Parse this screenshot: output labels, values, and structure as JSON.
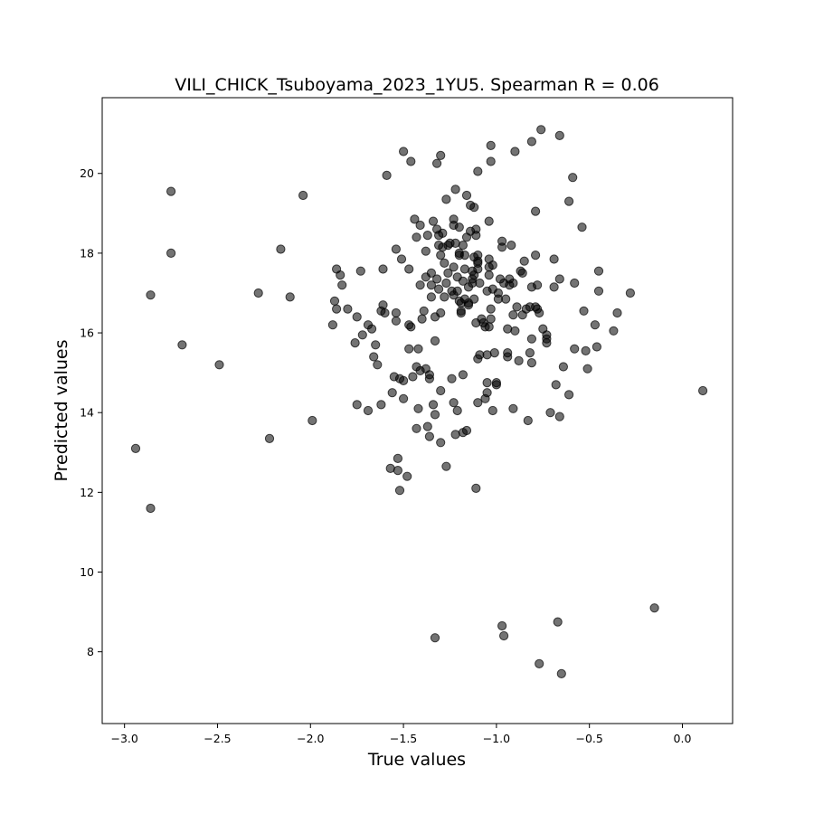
{
  "chart_data": {
    "type": "scatter",
    "title": "VILI_CHICK_Tsuboyama_2023_1YU5. Spearman R = 0.06",
    "xlabel": "True values",
    "ylabel": "Predicted values",
    "xlim": [
      -3.12,
      0.27
    ],
    "ylim": [
      6.2,
      21.9
    ],
    "xticks": [
      -3.0,
      -2.5,
      -2.0,
      -1.5,
      -1.0,
      -0.5,
      0.0
    ],
    "xtick_labels": [
      "−3.0",
      "−2.5",
      "−2.0",
      "−1.5",
      "−1.0",
      "−0.5",
      "0.0"
    ],
    "yticks": [
      8,
      10,
      12,
      14,
      16,
      18,
      20
    ],
    "ytick_labels": [
      "8",
      "10",
      "12",
      "14",
      "16",
      "18",
      "20"
    ],
    "grid": false,
    "legend": "none",
    "marker_color": "#000000",
    "points": [
      [
        -2.94,
        13.1
      ],
      [
        -2.86,
        16.95
      ],
      [
        -2.86,
        11.6
      ],
      [
        -2.75,
        19.55
      ],
      [
        -2.75,
        18.0
      ],
      [
        -2.69,
        15.7
      ],
      [
        -2.49,
        15.2
      ],
      [
        -2.28,
        17.0
      ],
      [
        -2.22,
        13.35
      ],
      [
        -2.16,
        18.1
      ],
      [
        -2.11,
        16.9
      ],
      [
        -2.04,
        19.45
      ],
      [
        -1.99,
        13.8
      ],
      [
        -1.88,
        16.2
      ],
      [
        -1.87,
        16.8
      ],
      [
        -1.86,
        17.6
      ],
      [
        -1.86,
        16.6
      ],
      [
        -1.84,
        17.45
      ],
      [
        -1.83,
        17.2
      ],
      [
        -1.8,
        16.6
      ],
      [
        -1.76,
        15.75
      ],
      [
        -1.75,
        16.4
      ],
      [
        -1.75,
        14.2
      ],
      [
        -1.73,
        17.55
      ],
      [
        -1.72,
        15.95
      ],
      [
        -1.69,
        16.2
      ],
      [
        -1.69,
        14.05
      ],
      [
        -1.67,
        16.1
      ],
      [
        -1.66,
        15.4
      ],
      [
        -1.65,
        15.7
      ],
      [
        -1.64,
        15.2
      ],
      [
        -1.62,
        14.2
      ],
      [
        -1.62,
        16.55
      ],
      [
        -1.61,
        17.6
      ],
      [
        -1.61,
        16.7
      ],
      [
        -1.6,
        16.5
      ],
      [
        -1.59,
        19.95
      ],
      [
        -1.57,
        12.6
      ],
      [
        -1.56,
        14.5
      ],
      [
        -1.55,
        14.9
      ],
      [
        -1.54,
        18.1
      ],
      [
        -1.54,
        16.3
      ],
      [
        -1.54,
        16.5
      ],
      [
        -1.53,
        12.85
      ],
      [
        -1.53,
        12.55
      ],
      [
        -1.52,
        12.05
      ],
      [
        -1.52,
        14.85
      ],
      [
        -1.51,
        17.85
      ],
      [
        -1.5,
        14.8
      ],
      [
        -1.5,
        14.35
      ],
      [
        -1.5,
        20.55
      ],
      [
        -1.48,
        12.4
      ],
      [
        -1.47,
        16.2
      ],
      [
        -1.47,
        15.6
      ],
      [
        -1.47,
        17.6
      ],
      [
        -1.46,
        16.15
      ],
      [
        -1.46,
        20.3
      ],
      [
        -1.45,
        14.9
      ],
      [
        -1.44,
        18.85
      ],
      [
        -1.43,
        15.15
      ],
      [
        -1.43,
        18.4
      ],
      [
        -1.43,
        13.6
      ],
      [
        -1.42,
        15.6
      ],
      [
        -1.42,
        14.1
      ],
      [
        -1.41,
        15.05
      ],
      [
        -1.41,
        17.2
      ],
      [
        -1.41,
        18.7
      ],
      [
        -1.4,
        16.35
      ],
      [
        -1.39,
        16.55
      ],
      [
        -1.38,
        15.1
      ],
      [
        -1.38,
        17.4
      ],
      [
        -1.38,
        18.05
      ],
      [
        -1.37,
        13.65
      ],
      [
        -1.37,
        18.45
      ],
      [
        -1.36,
        14.95
      ],
      [
        -1.36,
        14.85
      ],
      [
        -1.36,
        13.4
      ],
      [
        -1.35,
        17.5
      ],
      [
        -1.35,
        17.2
      ],
      [
        -1.35,
        16.9
      ],
      [
        -1.34,
        18.8
      ],
      [
        -1.34,
        14.2
      ],
      [
        -1.33,
        8.35
      ],
      [
        -1.33,
        15.8
      ],
      [
        -1.33,
        16.4
      ],
      [
        -1.33,
        13.95
      ],
      [
        -1.32,
        20.25
      ],
      [
        -1.32,
        17.35
      ],
      [
        -1.32,
        18.6
      ],
      [
        -1.31,
        18.2
      ],
      [
        -1.31,
        17.1
      ],
      [
        -1.31,
        18.45
      ],
      [
        -1.3,
        20.45
      ],
      [
        -1.3,
        17.95
      ],
      [
        -1.3,
        13.25
      ],
      [
        -1.3,
        14.55
      ],
      [
        -1.3,
        16.5
      ],
      [
        -1.29,
        18.5
      ],
      [
        -1.29,
        18.15
      ],
      [
        -1.28,
        17.75
      ],
      [
        -1.28,
        16.9
      ],
      [
        -1.27,
        17.25
      ],
      [
        -1.27,
        12.65
      ],
      [
        -1.27,
        19.35
      ],
      [
        -1.26,
        18.2
      ],
      [
        -1.26,
        17.5
      ],
      [
        -1.25,
        18.25
      ],
      [
        -1.24,
        17.05
      ],
      [
        -1.24,
        14.85
      ],
      [
        -1.23,
        18.85
      ],
      [
        -1.23,
        17.65
      ],
      [
        -1.23,
        16.95
      ],
      [
        -1.23,
        18.7
      ],
      [
        -1.23,
        14.25
      ],
      [
        -1.22,
        18.25
      ],
      [
        -1.22,
        13.45
      ],
      [
        -1.22,
        19.6
      ],
      [
        -1.21,
        17.4
      ],
      [
        -1.21,
        17.05
      ],
      [
        -1.21,
        14.05
      ],
      [
        -1.2,
        17.95
      ],
      [
        -1.2,
        16.8
      ],
      [
        -1.2,
        18.65
      ],
      [
        -1.2,
        18.0
      ],
      [
        -1.19,
        16.75
      ],
      [
        -1.19,
        16.55
      ],
      [
        -1.19,
        16.5
      ],
      [
        -1.18,
        17.3
      ],
      [
        -1.18,
        18.2
      ],
      [
        -1.18,
        13.5
      ],
      [
        -1.18,
        14.95
      ],
      [
        -1.17,
        17.6
      ],
      [
        -1.17,
        17.95
      ],
      [
        -1.17,
        16.85
      ],
      [
        -1.16,
        19.45
      ],
      [
        -1.16,
        18.4
      ],
      [
        -1.16,
        13.55
      ],
      [
        -1.15,
        17.15
      ],
      [
        -1.15,
        16.7
      ],
      [
        -1.15,
        16.75
      ],
      [
        -1.14,
        19.2
      ],
      [
        -1.14,
        18.55
      ],
      [
        -1.13,
        17.55
      ],
      [
        -1.13,
        17.35
      ],
      [
        -1.13,
        17.25
      ],
      [
        -1.12,
        17.45
      ],
      [
        -1.12,
        16.85
      ],
      [
        -1.12,
        17.9
      ],
      [
        -1.12,
        19.15
      ],
      [
        -1.11,
        12.1
      ],
      [
        -1.11,
        16.25
      ],
      [
        -1.11,
        18.45
      ],
      [
        -1.11,
        18.6
      ],
      [
        -1.1,
        20.05
      ],
      [
        -1.1,
        17.75
      ],
      [
        -1.1,
        17.8
      ],
      [
        -1.1,
        17.6
      ],
      [
        -1.1,
        17.95
      ],
      [
        -1.1,
        14.25
      ],
      [
        -1.1,
        15.35
      ],
      [
        -1.09,
        17.25
      ],
      [
        -1.09,
        15.45
      ],
      [
        -1.08,
        16.35
      ],
      [
        -1.07,
        16.25
      ],
      [
        -1.06,
        16.15
      ],
      [
        -1.06,
        14.35
      ],
      [
        -1.05,
        17.05
      ],
      [
        -1.05,
        14.75
      ],
      [
        -1.05,
        14.5
      ],
      [
        -1.05,
        15.45
      ],
      [
        -1.04,
        17.45
      ],
      [
        -1.04,
        17.65
      ],
      [
        -1.04,
        17.85
      ],
      [
        -1.04,
        18.8
      ],
      [
        -1.04,
        16.15
      ],
      [
        -1.03,
        20.7
      ],
      [
        -1.03,
        20.3
      ],
      [
        -1.03,
        16.6
      ],
      [
        -1.03,
        16.35
      ],
      [
        -1.02,
        17.7
      ],
      [
        -1.02,
        17.1
      ],
      [
        -1.02,
        14.05
      ],
      [
        -1.01,
        15.5
      ],
      [
        -1.0,
        14.75
      ],
      [
        -1.0,
        14.7
      ],
      [
        -0.99,
        16.85
      ],
      [
        -0.99,
        17.0
      ],
      [
        -0.98,
        17.35
      ],
      [
        -0.97,
        18.3
      ],
      [
        -0.97,
        18.15
      ],
      [
        -0.97,
        8.65
      ],
      [
        -0.96,
        8.4
      ],
      [
        -0.96,
        17.25
      ],
      [
        -0.95,
        16.85
      ],
      [
        -0.94,
        16.1
      ],
      [
        -0.94,
        15.4
      ],
      [
        -0.94,
        15.5
      ],
      [
        -0.93,
        17.2
      ],
      [
        -0.93,
        17.35
      ],
      [
        -0.92,
        18.2
      ],
      [
        -0.91,
        16.45
      ],
      [
        -0.91,
        17.25
      ],
      [
        -0.91,
        14.1
      ],
      [
        -0.9,
        20.55
      ],
      [
        -0.9,
        16.05
      ],
      [
        -0.89,
        16.65
      ],
      [
        -0.88,
        15.3
      ],
      [
        -0.87,
        17.55
      ],
      [
        -0.86,
        17.5
      ],
      [
        -0.86,
        16.45
      ],
      [
        -0.85,
        17.8
      ],
      [
        -0.84,
        16.6
      ],
      [
        -0.83,
        13.8
      ],
      [
        -0.82,
        16.65
      ],
      [
        -0.82,
        15.5
      ],
      [
        -0.81,
        20.8
      ],
      [
        -0.81,
        17.15
      ],
      [
        -0.81,
        15.25
      ],
      [
        -0.81,
        15.85
      ],
      [
        -0.79,
        19.05
      ],
      [
        -0.79,
        17.95
      ],
      [
        -0.79,
        16.65
      ],
      [
        -0.78,
        16.6
      ],
      [
        -0.78,
        17.2
      ],
      [
        -0.77,
        7.7
      ],
      [
        -0.77,
        16.5
      ],
      [
        -0.76,
        21.1
      ],
      [
        -0.75,
        16.1
      ],
      [
        -0.73,
        15.95
      ],
      [
        -0.73,
        15.85
      ],
      [
        -0.73,
        15.75
      ],
      [
        -0.71,
        14.0
      ],
      [
        -0.69,
        17.85
      ],
      [
        -0.69,
        17.15
      ],
      [
        -0.68,
        14.7
      ],
      [
        -0.67,
        8.75
      ],
      [
        -0.66,
        20.95
      ],
      [
        -0.66,
        17.35
      ],
      [
        -0.66,
        13.9
      ],
      [
        -0.65,
        7.45
      ],
      [
        -0.64,
        15.15
      ],
      [
        -0.61,
        19.3
      ],
      [
        -0.61,
        14.45
      ],
      [
        -0.59,
        19.9
      ],
      [
        -0.58,
        17.25
      ],
      [
        -0.58,
        15.6
      ],
      [
        -0.54,
        18.65
      ],
      [
        -0.53,
        16.55
      ],
      [
        -0.52,
        15.55
      ],
      [
        -0.51,
        15.1
      ],
      [
        -0.47,
        16.2
      ],
      [
        -0.46,
        15.65
      ],
      [
        -0.45,
        17.55
      ],
      [
        -0.45,
        17.05
      ],
      [
        -0.37,
        16.05
      ],
      [
        -0.35,
        16.5
      ],
      [
        -0.28,
        17.0
      ],
      [
        -0.15,
        9.1
      ],
      [
        0.11,
        14.55
      ]
    ]
  }
}
